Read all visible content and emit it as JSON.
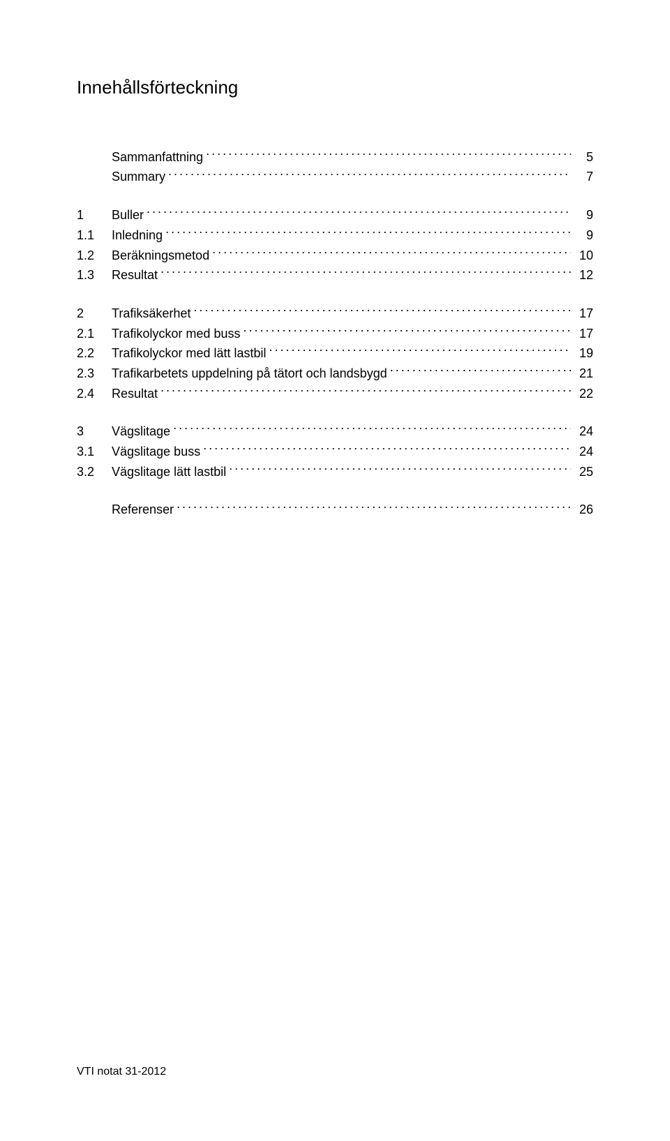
{
  "title": "Innehållsförteckning",
  "footer": "VTI notat 31-2012",
  "toc": {
    "blocks": [
      {
        "items": [
          {
            "num": "",
            "label": "Sammanfattning",
            "page": "5",
            "level": 1
          },
          {
            "num": "",
            "label": "Summary",
            "page": "7",
            "level": 1
          }
        ]
      },
      {
        "items": [
          {
            "num": "1",
            "label": "Buller",
            "page": "9",
            "level": 1
          },
          {
            "num": "1.1",
            "label": "Inledning",
            "page": "9",
            "level": 2
          },
          {
            "num": "1.2",
            "label": "Beräkningsmetod",
            "page": "10",
            "level": 2
          },
          {
            "num": "1.3",
            "label": "Resultat",
            "page": "12",
            "level": 2
          }
        ]
      },
      {
        "items": [
          {
            "num": "2",
            "label": "Trafiksäkerhet",
            "page": "17",
            "level": 1
          },
          {
            "num": "2.1",
            "label": "Trafikolyckor med buss",
            "page": "17",
            "level": 2
          },
          {
            "num": "2.2",
            "label": "Trafikolyckor med lätt lastbil",
            "page": "19",
            "level": 2
          },
          {
            "num": "2.3",
            "label": "Trafikarbetets uppdelning på tätort och landsbygd",
            "page": "21",
            "level": 2
          },
          {
            "num": "2.4",
            "label": "Resultat",
            "page": "22",
            "level": 2
          }
        ]
      },
      {
        "items": [
          {
            "num": "3",
            "label": "Vägslitage",
            "page": "24",
            "level": 1
          },
          {
            "num": "3.1",
            "label": "Vägslitage buss",
            "page": "24",
            "level": 2
          },
          {
            "num": "3.2",
            "label": "Vägslitage lätt lastbil",
            "page": "25",
            "level": 2
          }
        ]
      },
      {
        "items": [
          {
            "num": "",
            "label": "Referenser",
            "page": "26",
            "level": 1
          }
        ]
      }
    ]
  }
}
